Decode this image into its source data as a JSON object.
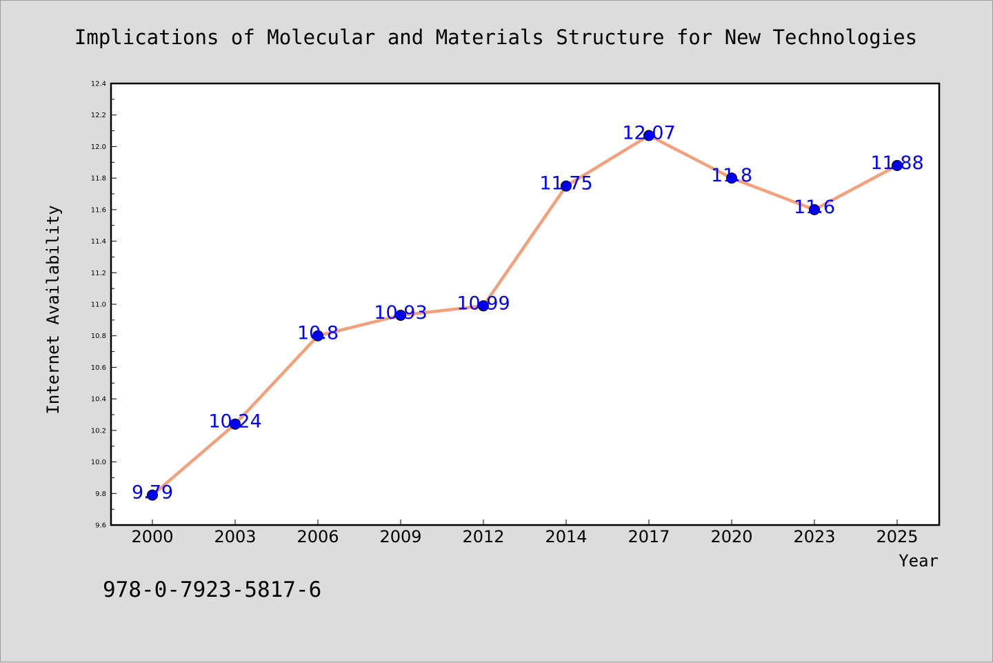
{
  "chart_data": {
    "type": "line",
    "title": "Implications of Molecular and Materials Structure for New Technologies",
    "xlabel": "Year",
    "ylabel": "Internet Availability",
    "categories": [
      "2000",
      "2003",
      "2006",
      "2009",
      "2012",
      "2014",
      "2017",
      "2020",
      "2023",
      "2025"
    ],
    "series": [
      {
        "values": [
          9.79,
          10.24,
          10.8,
          10.93,
          10.99,
          11.75,
          12.07,
          11.8,
          11.6,
          11.88
        ],
        "labels": [
          "9.79",
          "10.24",
          "10.8",
          "10.93",
          "10.99",
          "11.75",
          "12.07",
          "11.8",
          "11.6",
          "11.88"
        ],
        "line_color": "#f4a07a",
        "marker_color": "#0000ee"
      }
    ],
    "ylim": [
      9.6,
      12.4
    ],
    "yticks": [
      "9.6",
      "9.8",
      "10.0",
      "10.2",
      "10.4",
      "10.6",
      "10.8",
      "11.0",
      "11.2",
      "11.4",
      "11.6",
      "11.8",
      "12.0",
      "12.2",
      "12.4"
    ],
    "grid": false,
    "legend": "none",
    "label_color": "#0000ff"
  },
  "footer": {
    "isbn": "978-0-7923-5817-6"
  },
  "colors": {
    "background": "#dcdcdc",
    "plot_area": "#ffffff"
  }
}
